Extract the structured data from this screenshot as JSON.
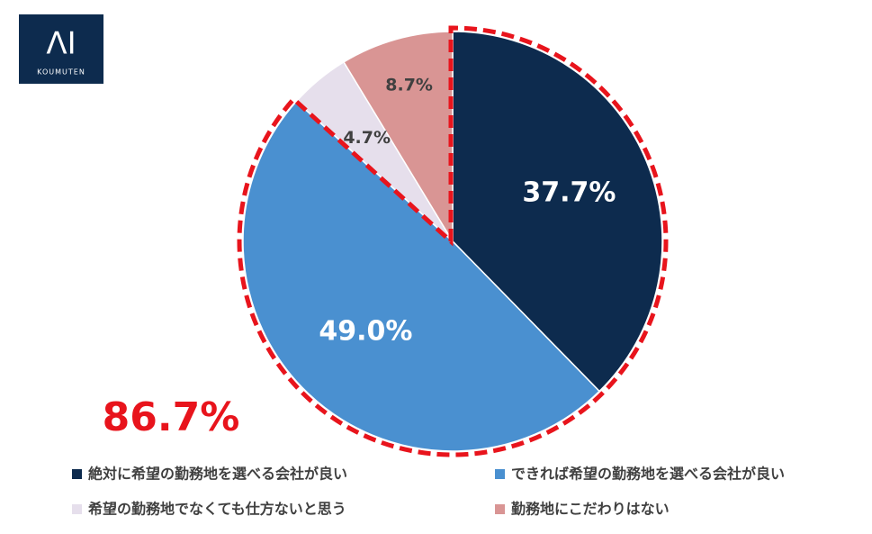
{
  "logo": {
    "mark": "ΛI",
    "name": "KOUMUTEN"
  },
  "chart_data": {
    "type": "pie",
    "annotation": "86.7%",
    "categories": [
      "絶対に希望の勤務地を選べる会社が良い",
      "できれば希望の勤務地を選べる会社が良い",
      "希望の勤務地でなくても仕方ないと思う",
      "勤務地にこだわりはない"
    ],
    "values": [
      37.7,
      49.0,
      4.7,
      8.7
    ],
    "value_labels": [
      "37.7%",
      "49.0%",
      "4.7%",
      "8.7%"
    ],
    "colors": [
      "#0d2b4e",
      "#4a90d0",
      "#e6dfec",
      "#d99594"
    ],
    "highlight_color": "#e8141c"
  }
}
